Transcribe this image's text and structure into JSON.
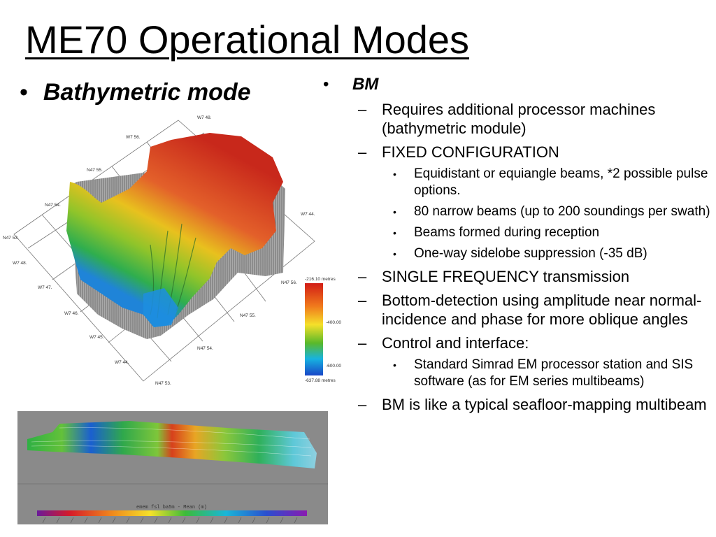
{
  "slide": {
    "title": "ME70 Operational Modes",
    "left_bullet": "Bathymetric mode",
    "right": {
      "heading": "BM",
      "items": [
        {
          "text": "Requires additional processor machines (bathymetric module)",
          "sub": []
        },
        {
          "text": "FIXED CONFIGURATION",
          "sub": [
            "Equidistant or equiangle beams, *2 possible pulse options.",
            "80 narrow beams (up to 200 soundings per swath)",
            "Beams formed during reception",
            "One-way sidelobe suppression (-35 dB)"
          ]
        },
        {
          "text": "SINGLE FREQUENCY transmission",
          "sub": []
        },
        {
          "text": "Bottom-detection using amplitude near normal-incidence and phase for more oblique angles",
          "sub": []
        },
        {
          "text": "Control and interface:",
          "sub": [
            "Standard Simrad EM processor station and SIS software (as for EM series multibeams)"
          ]
        },
        {
          "text": "BM is like a typical seafloor-mapping multibeam",
          "sub": []
        }
      ]
    }
  },
  "bathy_figure": {
    "grid_labels_left": [
      "W7 56.",
      "N47 55.",
      "N47 54.",
      "N47 53.",
      "W7 48.",
      "W7 47.",
      "W7 46.",
      "W7 45.",
      "W7 44."
    ],
    "grid_labels_right": [
      "W7 48.",
      "N47 56.",
      "N47 55.",
      "N47 54.",
      "N47 53.",
      "W7 44."
    ],
    "colorbar_labels": [
      "-216.10 metres",
      "-400.00",
      "-600.00",
      "-637.88 metres"
    ]
  },
  "strip_figure": {
    "caption": "emem fsl ba5m - Mean (m)"
  },
  "colors": {
    "deep": "#1a6bd6",
    "mid": "#6cc024",
    "shallow": "#d02318",
    "strip_bg": "#8a8a8a"
  }
}
